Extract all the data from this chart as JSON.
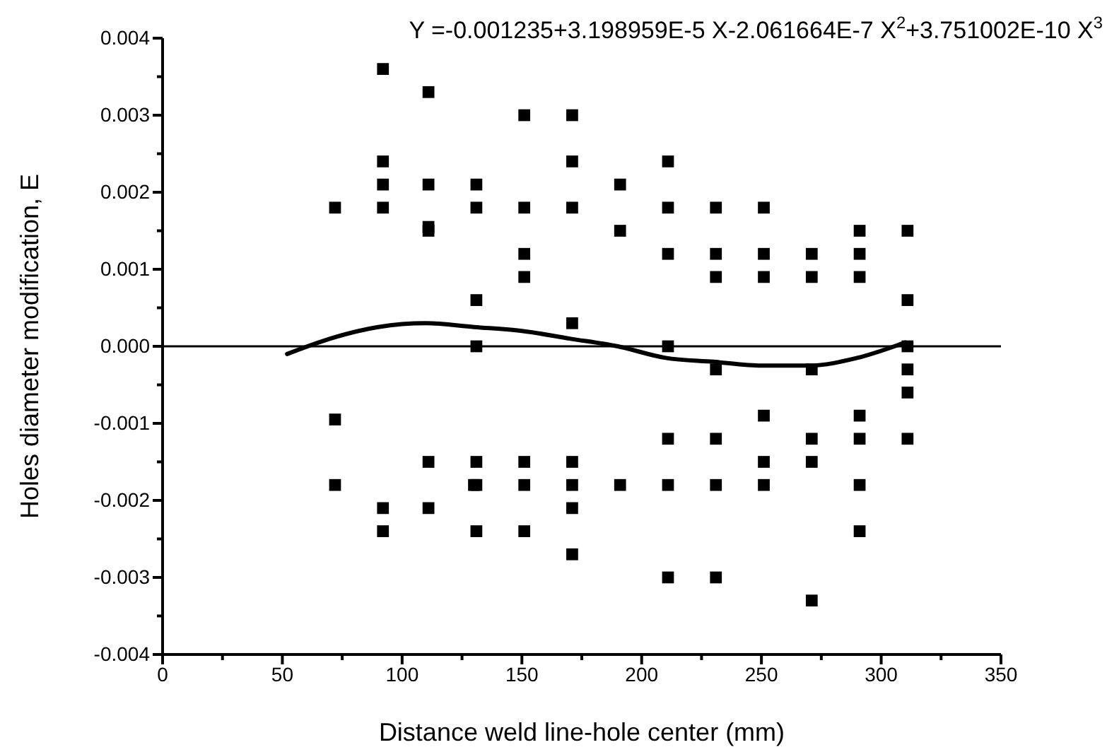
{
  "chart_data": {
    "type": "scatter",
    "xlabel": "Distance weld line-hole center (mm)",
    "ylabel": "Holes diameter modification, E",
    "annotations": [
      "Y =-0.001235+3.198959E-5 X-2.061664E-7 X$^{2}$+3.751002E-10 X$^{3}$"
    ],
    "xlim": [
      0,
      350
    ],
    "ylim": [
      -0.004,
      0.004
    ],
    "xticks": [
      0,
      {
        "value": 25,
        "label": null
      },
      50,
      {
        "value": 75,
        "label": null
      },
      100,
      {
        "value": 125,
        "label": null
      },
      150,
      {
        "value": 175,
        "label": null
      },
      200,
      {
        "value": 225,
        "label": null
      },
      250,
      {
        "value": 275,
        "label": null
      },
      300,
      {
        "value": 325,
        "label": null
      },
      350
    ],
    "yticks": [
      {
        "value": -0.004,
        "label": "-0.004"
      },
      {
        "value": -0.0035,
        "label": null
      },
      {
        "value": -0.003,
        "label": "-0.003"
      },
      {
        "value": -0.0025,
        "label": null
      },
      {
        "value": -0.002,
        "label": "-0.002"
      },
      {
        "value": -0.0015,
        "label": null
      },
      {
        "value": -0.001,
        "label": "-0.001"
      },
      {
        "value": -0.0005,
        "label": null
      },
      {
        "value": 0,
        "label": "0.000"
      },
      {
        "value": 0.0005,
        "label": null
      },
      {
        "value": 0.001,
        "label": "0.001"
      },
      {
        "value": 0.0015,
        "label": null
      },
      {
        "value": 0.002,
        "label": "0.002"
      },
      {
        "value": 0.0025,
        "label": null
      },
      {
        "value": 0.003,
        "label": "0.003"
      },
      {
        "value": 0.0035,
        "label": null
      },
      {
        "value": 0.004,
        "label": "0.004"
      }
    ],
    "grid": false,
    "ref_lines": [
      {
        "axis": "y",
        "value": 0,
        "color": "#000000"
      }
    ],
    "series": [
      {
        "marker": "square",
        "color": "#000000",
        "x": [
          72,
          72,
          72,
          92,
          92,
          92,
          92,
          92,
          92,
          111,
          111,
          111,
          111,
          111,
          111,
          131,
          131,
          131,
          131,
          131,
          131,
          130,
          131,
          151,
          151,
          151,
          151,
          151,
          151,
          151,
          171,
          171,
          171,
          171,
          171,
          171,
          171,
          171,
          191,
          191,
          191,
          211,
          211,
          211,
          211,
          211,
          211,
          211,
          231,
          231,
          231,
          231,
          231,
          231,
          231,
          251,
          251,
          251,
          251,
          251,
          251,
          271,
          271,
          271,
          271,
          271,
          271,
          291,
          291,
          291,
          291,
          291,
          291,
          291,
          311,
          311,
          311,
          311,
          311,
          311
        ],
        "values": [
          0.0018,
          -0.00095,
          -0.0018,
          0.0036,
          0.0024,
          0.0021,
          0.0018,
          -0.0021,
          -0.0024,
          0.0033,
          0.0021,
          0.00155,
          0.0015,
          -0.0015,
          -0.0021,
          0.0021,
          0.0018,
          0.0006,
          0,
          -0.0015,
          -0.0018,
          -0.0018,
          -0.0024,
          0.003,
          0.0018,
          0.0012,
          0.0009,
          -0.0015,
          -0.0018,
          -0.0024,
          0.003,
          0.0024,
          0.0018,
          0.0003,
          -0.0015,
          -0.0018,
          -0.0021,
          -0.0027,
          0.0021,
          0.0015,
          -0.0018,
          0.0024,
          0.0018,
          0.0012,
          0,
          -0.0012,
          -0.0018,
          -0.003,
          0.0018,
          0.0012,
          0.0009,
          -0.0003,
          -0.0012,
          -0.0018,
          -0.003,
          0.0018,
          0.0012,
          0.0009,
          -0.0009,
          -0.0015,
          -0.0018,
          0.0012,
          0.0009,
          -0.0003,
          -0.0012,
          -0.0015,
          -0.0033,
          0.0015,
          0.0012,
          0.0009,
          -0.0009,
          -0.0012,
          -0.0018,
          -0.0024,
          0.0015,
          0.0006,
          0,
          -0.0003,
          -0.0006,
          -0.0012
        ]
      },
      {
        "type": "line",
        "marker": "none",
        "line_style": "solid",
        "color": "#000000",
        "x": [
          52,
          70,
          90,
          110,
          130,
          150,
          170,
          190,
          210,
          230,
          250,
          270,
          290,
          310
        ],
        "values": [
          -0.0001,
          0.0001,
          0.00025,
          0.0003,
          0.00025,
          0.0002,
          0.0001,
          0,
          -0.00015,
          -0.0002,
          -0.00025,
          -0.00025,
          -0.00015,
          5e-05
        ]
      }
    ]
  }
}
